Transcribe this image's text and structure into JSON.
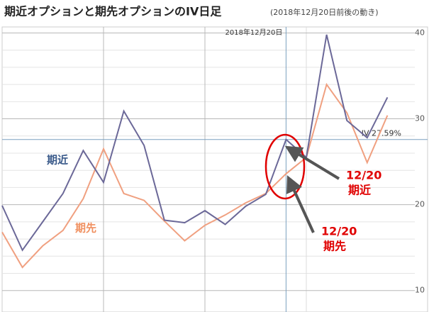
{
  "chart_data": {
    "type": "line",
    "title": "期近オプションと期先オプションのIV日足",
    "subtitle": "(2018年12月20日前後の動き)",
    "categories": [
      null,
      null,
      null,
      null,
      null,
      null,
      null,
      null,
      null,
      null,
      null,
      null,
      null,
      null,
      "2018年12月20日",
      null,
      null,
      null,
      null,
      null
    ],
    "series": [
      {
        "name": "期近",
        "color": "#6b6898",
        "values": [
          19.9,
          14.7,
          18.0,
          21.3,
          26.3,
          22.6,
          30.9,
          26.9,
          18.2,
          17.9,
          19.3,
          17.7,
          19.8,
          21.2,
          27.59,
          25.5,
          39.8,
          29.8,
          27.8,
          32.5
        ]
      },
      {
        "name": "期先",
        "color": "#f0a080",
        "values": [
          16.8,
          12.7,
          15.2,
          17.0,
          20.7,
          26.5,
          21.3,
          20.5,
          18.1,
          15.8,
          17.6,
          18.8,
          20.2,
          21.3,
          23.6,
          25.5,
          34.0,
          30.7,
          24.9,
          30.4
        ]
      }
    ],
    "ylim": [
      7.5,
      40.7
    ],
    "yticks": [
      10,
      20,
      30,
      40
    ],
    "minor_yticks": [
      12,
      14,
      16,
      18,
      22,
      24,
      26,
      28,
      32,
      34,
      36,
      38
    ],
    "grid": true,
    "crosshair": {
      "value": 27.59,
      "label": "IV 27.59%"
    },
    "annotations": [
      {
        "lines": [
          "12/20",
          "期近"
        ],
        "color": "#e00000"
      },
      {
        "lines": [
          "12/20",
          "期先"
        ],
        "color": "#e00000"
      }
    ]
  }
}
